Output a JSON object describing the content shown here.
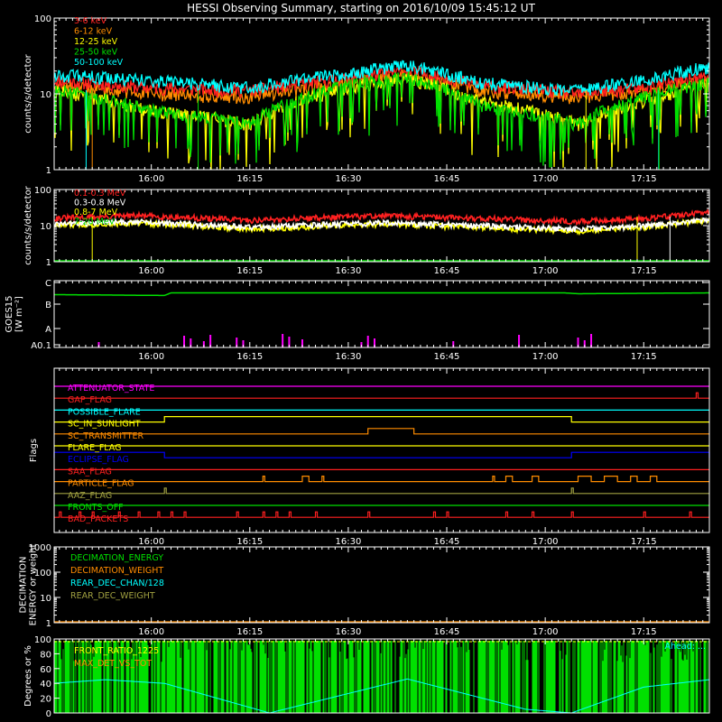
{
  "title": "HESSI Observing Summary, starting on 2016/10/09 15:45:12 UT",
  "colors": {
    "red": "#ff2020",
    "orange": "#ff8c00",
    "yellow": "#ffff00",
    "green": "#00e000",
    "cyan": "#00ffff",
    "magenta": "#ff00ff",
    "blue": "#0000ff",
    "olive": "#a0a040",
    "white": "#ffffff",
    "grey": "#808080"
  },
  "chart_data": [
    {
      "id": "lightcurves",
      "type": "line",
      "ylabel": "counts/s/detector",
      "yscale": "log",
      "ylim": [
        1,
        100
      ],
      "yticks": [
        "1",
        "10",
        "100"
      ],
      "xrange": [
        "15:45:12",
        "17:25"
      ],
      "xtick_labels": [
        "16:00",
        "16:15",
        "16:30",
        "16:45",
        "17:00",
        "17:15"
      ],
      "legend_position": "top-left",
      "series": [
        {
          "name": "3-6 keV",
          "color": "red",
          "points": [
            [
              "15:45",
              15
            ],
            [
              "16:00",
              12
            ],
            [
              "16:15",
              11
            ],
            [
              "16:30",
              16
            ],
            [
              "16:39",
              20
            ],
            [
              "16:50",
              13
            ],
            [
              "17:05",
              10
            ],
            [
              "17:15",
              12
            ],
            [
              "17:25",
              17
            ]
          ]
        },
        {
          "name": "6-12 keV",
          "color": "orange",
          "points": [
            [
              "15:45",
              13
            ],
            [
              "16:00",
              10
            ],
            [
              "16:15",
              9
            ],
            [
              "16:30",
              14
            ],
            [
              "16:39",
              18
            ],
            [
              "16:50",
              11
            ],
            [
              "17:05",
              9
            ],
            [
              "17:15",
              11
            ],
            [
              "17:25",
              15
            ]
          ]
        },
        {
          "name": "12-25 keV",
          "color": "yellow",
          "points": [
            [
              "15:45",
              11
            ],
            [
              "16:00",
              6
            ],
            [
              "16:15",
              4
            ],
            [
              "16:30",
              12
            ],
            [
              "16:39",
              16
            ],
            [
              "16:50",
              8
            ],
            [
              "17:05",
              4
            ],
            [
              "17:15",
              8
            ],
            [
              "17:25",
              13
            ]
          ]
        },
        {
          "name": "25-50 keV",
          "color": "green",
          "points": [
            [
              "15:45",
              12
            ],
            [
              "16:00",
              6
            ],
            [
              "16:15",
              4
            ],
            [
              "16:30",
              13
            ],
            [
              "16:39",
              17
            ],
            [
              "16:50",
              7
            ],
            [
              "17:05",
              4
            ],
            [
              "17:15",
              9
            ],
            [
              "17:25",
              14
            ]
          ]
        },
        {
          "name": "50-100 keV",
          "color": "cyan",
          "points": [
            [
              "15:45",
              18
            ],
            [
              "16:00",
              15
            ],
            [
              "16:15",
              12
            ],
            [
              "16:30",
              19
            ],
            [
              "16:39",
              24
            ],
            [
              "16:50",
              14
            ],
            [
              "17:05",
              11
            ],
            [
              "17:15",
              15
            ],
            [
              "17:25",
              23
            ]
          ]
        }
      ]
    },
    {
      "id": "high_energy",
      "type": "line",
      "ylabel": "counts/s/detector",
      "yscale": "log",
      "ylim": [
        1,
        100
      ],
      "yticks": [
        "1",
        "10",
        "100"
      ],
      "xtick_labels": [
        "16:00",
        "16:15",
        "16:30",
        "16:45",
        "17:00",
        "17:15"
      ],
      "legend_position": "top-left",
      "series": [
        {
          "name": "0.1-0.3 MeV",
          "color": "red",
          "points": [
            [
              "15:45",
              16
            ],
            [
              "15:58",
              19
            ],
            [
              "16:15",
              14
            ],
            [
              "16:35",
              19
            ],
            [
              "16:50",
              16
            ],
            [
              "17:05",
              13
            ],
            [
              "17:15",
              16
            ],
            [
              "17:25",
              23
            ]
          ]
        },
        {
          "name": "0.3-0.8 MeV",
          "color": "white",
          "points": [
            [
              "15:45",
              11
            ],
            [
              "15:58",
              13
            ],
            [
              "16:15",
              9
            ],
            [
              "16:35",
              12
            ],
            [
              "16:50",
              10
            ],
            [
              "17:05",
              8
            ],
            [
              "17:15",
              10
            ],
            [
              "17:25",
              15
            ]
          ]
        },
        {
          "name": "0.8-7 MeV",
          "color": "yellow",
          "points": [
            [
              "15:45",
              10
            ],
            [
              "15:58",
              12
            ],
            [
              "16:15",
              8
            ],
            [
              "16:35",
              11
            ],
            [
              "16:50",
              9
            ],
            [
              "17:05",
              7
            ],
            [
              "17:15",
              9
            ],
            [
              "17:25",
              14
            ]
          ]
        },
        {
          "name": "7-20 MeV",
          "color": "green",
          "points": [
            [
              "15:45",
              1
            ],
            [
              "17:25",
              1
            ]
          ]
        }
      ]
    },
    {
      "id": "goes",
      "type": "line",
      "ylabel": "GOES15 [W m⁻²]",
      "ytick_labels": [
        "A0.1",
        "A",
        "B",
        "C"
      ],
      "xtick_labels": [
        "16:00",
        "16:15",
        "16:30",
        "16:45",
        "17:00",
        "17:15"
      ],
      "series": [
        {
          "name": "GOES flux",
          "color": "green",
          "level": "B-C",
          "points": [
            [
              "15:45",
              0.72
            ],
            [
              "16:02",
              0.7
            ],
            [
              "16:03",
              0.76
            ],
            [
              "17:03",
              0.76
            ],
            [
              "17:05",
              0.74
            ],
            [
              "17:25",
              0.76
            ]
          ]
        }
      ],
      "spikes": {
        "color": "magenta",
        "times": [
          "15:52",
          "16:05",
          "16:06",
          "16:08",
          "16:09",
          "16:13",
          "16:14",
          "16:20",
          "16:21",
          "16:23",
          "16:32",
          "16:33",
          "16:34",
          "16:46",
          "16:56",
          "17:05",
          "17:06",
          "17:07"
        ]
      }
    },
    {
      "id": "flags",
      "type": "line",
      "ylabel": "Flags",
      "xtick_labels": [
        "16:00",
        "16:15",
        "16:30",
        "16:45",
        "17:00",
        "17:15"
      ],
      "flags": [
        {
          "name": "ATTENUATOR_STATE",
          "color": "magenta",
          "high": []
        },
        {
          "name": "GAP_FLAG",
          "color": "red",
          "high": [
            [
              "17:23",
              "17:23"
            ]
          ]
        },
        {
          "name": "POSSIBLE_FLARE",
          "color": "cyan",
          "high": []
        },
        {
          "name": "SC_IN_SUNLIGHT",
          "color": "yellow",
          "high": [
            [
              "16:02",
              "17:04"
            ]
          ]
        },
        {
          "name": "SC_TRANSMITTER",
          "color": "orange",
          "high": [
            [
              "16:33",
              "16:40"
            ]
          ]
        },
        {
          "name": "FLARE_FLAG",
          "color": "yellow",
          "high": []
        },
        {
          "name": "ECLIPSE_FLAG",
          "color": "blue",
          "high": [
            [
              "15:45",
              "16:02"
            ],
            [
              "17:04",
              "17:25"
            ]
          ]
        },
        {
          "name": "SAA_FLAG",
          "color": "red",
          "high": []
        },
        {
          "name": "PARTICLE_FLAG",
          "color": "orange",
          "high": [
            [
              "16:17",
              "16:17"
            ],
            [
              "16:23",
              "16:24"
            ],
            [
              "16:26",
              "16:26"
            ],
            [
              "16:52",
              "16:52"
            ],
            [
              "16:54",
              "16:55"
            ],
            [
              "16:58",
              "16:59"
            ],
            [
              "17:05",
              "17:07"
            ],
            [
              "17:09",
              "17:11"
            ],
            [
              "17:13",
              "17:14"
            ],
            [
              "17:16",
              "17:17"
            ]
          ]
        },
        {
          "name": "AAZ_FLAG",
          "color": "olive",
          "high": [
            [
              "16:02",
              "16:02"
            ],
            [
              "17:04",
              "17:04"
            ]
          ]
        },
        {
          "name": "FRONTS_OFF",
          "color": "green",
          "high": []
        },
        {
          "name": "BAD_PACKETS",
          "color": "red",
          "high": [
            [
              "15:46",
              "15:46"
            ],
            [
              "15:49",
              "15:49"
            ],
            [
              "15:51",
              "15:51"
            ],
            [
              "15:55",
              "15:55"
            ],
            [
              "15:58",
              "15:58"
            ],
            [
              "16:01",
              "16:01"
            ],
            [
              "16:03",
              "16:03"
            ],
            [
              "16:05",
              "16:05"
            ],
            [
              "16:13",
              "16:13"
            ],
            [
              "16:17",
              "16:17"
            ],
            [
              "16:19",
              "16:19"
            ],
            [
              "16:21",
              "16:21"
            ],
            [
              "16:25",
              "16:25"
            ],
            [
              "16:33",
              "16:33"
            ],
            [
              "16:43",
              "16:43"
            ],
            [
              "16:45",
              "16:45"
            ],
            [
              "16:54",
              "16:54"
            ],
            [
              "16:58",
              "16:58"
            ],
            [
              "17:04",
              "17:04"
            ],
            [
              "17:15",
              "17:15"
            ],
            [
              "17:22",
              "17:22"
            ]
          ]
        }
      ]
    },
    {
      "id": "decimation",
      "type": "line",
      "ylabel": "DECIMATION\nENERGY or weight",
      "yscale": "log",
      "ylim": [
        1,
        1000
      ],
      "yticks": [
        "1",
        "10",
        "100",
        "1000"
      ],
      "xtick_labels": [
        "16:00",
        "16:15",
        "16:30",
        "16:45",
        "17:00",
        "17:15"
      ],
      "legend_position": "top-left",
      "series": [
        {
          "name": "DECIMATION_ENERGY",
          "color": "green",
          "points": [
            [
              "15:45",
              1
            ],
            [
              "17:25",
              1
            ]
          ]
        },
        {
          "name": "DECIMATION_WEIGHT",
          "color": "orange",
          "points": [
            [
              "15:45",
              1
            ],
            [
              "17:25",
              1
            ]
          ]
        },
        {
          "name": "REAR_DEC_CHAN/128",
          "color": "cyan",
          "points": []
        },
        {
          "name": "REAR_DEC_WEIGHT",
          "color": "olive",
          "points": []
        }
      ]
    },
    {
      "id": "pointing",
      "type": "line",
      "ylabel": "Degrees or %",
      "ylim": [
        0,
        100
      ],
      "yticks": [
        "0",
        "20",
        "40",
        "60",
        "80",
        "100"
      ],
      "legend_position": "top-left",
      "series": [
        {
          "name": "FRONT_RATIO_1225",
          "color": "yellow",
          "points": [
            [
              "15:45",
              100
            ],
            [
              "17:25",
              100
            ]
          ]
        },
        {
          "name": "MAX_DET_VS_TOT",
          "color": "orange",
          "points": []
        },
        {
          "name": "ATTITUDE",
          "color": "cyan",
          "points": [
            [
              "15:45",
              40
            ],
            [
              "15:53",
              45
            ],
            [
              "16:02",
              40
            ],
            [
              "16:18",
              0
            ],
            [
              "16:39",
              46
            ],
            [
              "16:57",
              5
            ],
            [
              "17:04",
              0
            ],
            [
              "17:15",
              35
            ],
            [
              "17:25",
              45
            ]
          ]
        }
      ]
    }
  ],
  "pointing_note": "Ahead: ..."
}
